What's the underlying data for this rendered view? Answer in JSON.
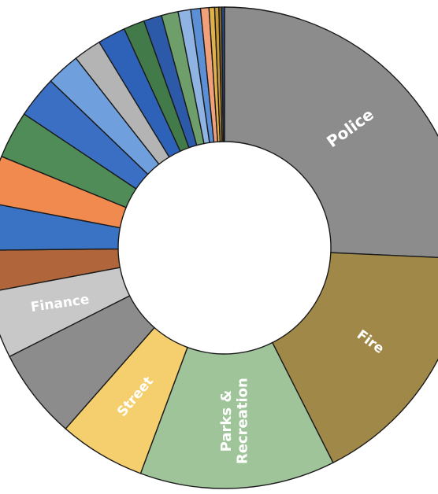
{
  "chart_data": {
    "type": "pie",
    "variant": "donut",
    "title": "",
    "legend": "none",
    "slices": [
      {
        "label": "Police",
        "value": 27.5,
        "color": "#8c8c8c",
        "shown": true
      },
      {
        "label": "Fire",
        "value": 18.0,
        "color": "#a08948",
        "shown": true
      },
      {
        "label": "Parks & Recreation",
        "value": 14.0,
        "color": "#9fc49a",
        "shown": true
      },
      {
        "label": "Street",
        "value": 6.2,
        "color": "#f5cf6e",
        "shown": true
      },
      {
        "label": "",
        "value": 6.5,
        "color": "#8c8c8c",
        "shown": false
      },
      {
        "label": "Finance",
        "value": 4.8,
        "color": "#c8c8c8",
        "shown": true
      },
      {
        "label": "",
        "value": 3.0,
        "color": "#b0663a",
        "shown": false
      },
      {
        "label": "",
        "value": 3.4,
        "color": "#3a73c4",
        "shown": false
      },
      {
        "label": "",
        "value": 3.4,
        "color": "#f08a4e",
        "shown": false
      },
      {
        "label": "",
        "value": 3.4,
        "color": "#4f8c57",
        "shown": false
      },
      {
        "label": "",
        "value": 3.0,
        "color": "#3a6fc4",
        "shown": false
      },
      {
        "label": "",
        "value": 2.4,
        "color": "#6f9fdc",
        "shown": false
      },
      {
        "label": "",
        "value": 2.0,
        "color": "#b4b4b4",
        "shown": false
      },
      {
        "label": "",
        "value": 2.0,
        "color": "#2e62b8",
        "shown": false
      },
      {
        "label": "",
        "value": 1.5,
        "color": "#437a4a",
        "shown": false
      },
      {
        "label": "",
        "value": 1.3,
        "color": "#2d5aa8",
        "shown": false
      },
      {
        "label": "",
        "value": 1.2,
        "color": "#6e9e6a",
        "shown": false
      },
      {
        "label": "",
        "value": 0.9,
        "color": "#8fb4e4",
        "shown": false
      },
      {
        "label": "",
        "value": 0.7,
        "color": "#5b8fd6",
        "shown": false
      },
      {
        "label": "",
        "value": 0.6,
        "color": "#f2a07a",
        "shown": false
      },
      {
        "label": "",
        "value": 0.4,
        "color": "#e0b04a",
        "shown": false
      },
      {
        "label": "",
        "value": 0.3,
        "color": "#c99a3a",
        "shown": false
      },
      {
        "label": "",
        "value": 0.2,
        "color": "#8a6a2a",
        "shown": false
      },
      {
        "label": "",
        "value": 0.2,
        "color": "#2a4a88",
        "shown": false
      }
    ]
  }
}
